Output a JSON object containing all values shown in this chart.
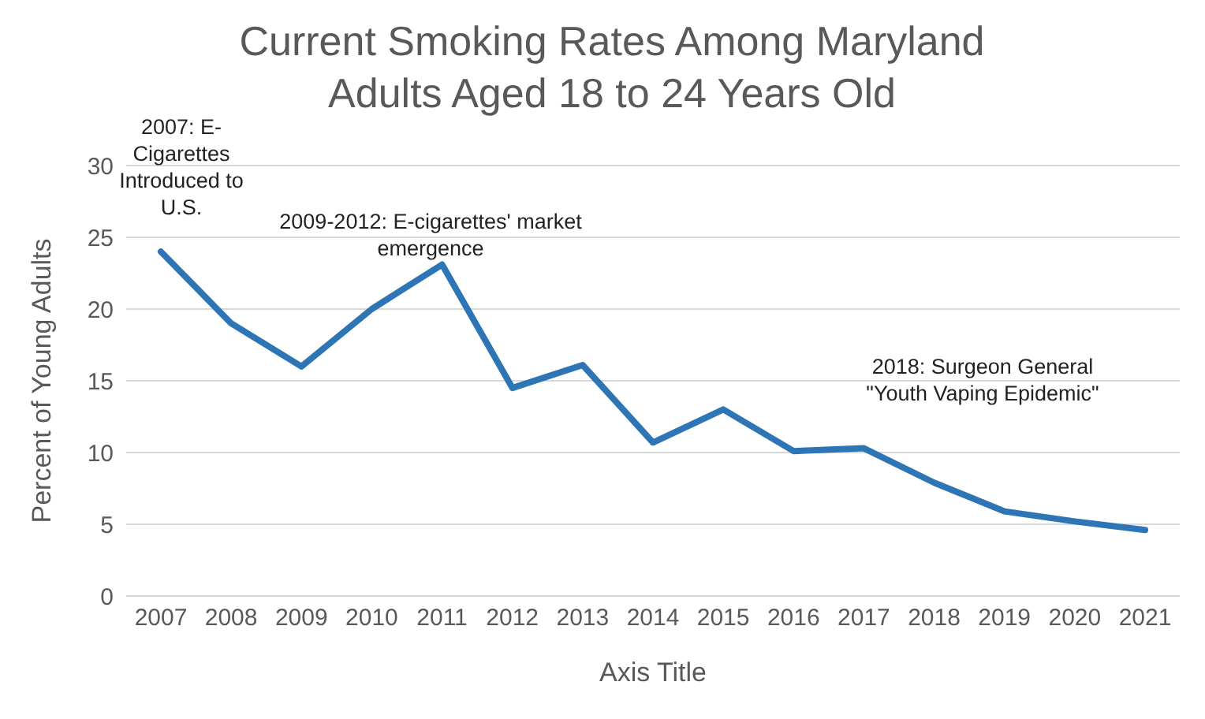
{
  "chart_data": {
    "type": "line",
    "title": "Current Smoking Rates Among Maryland Adults Aged 18 to 24 Years Old",
    "xlabel": "Axis Title",
    "ylabel": "Percent of Young Adults",
    "categories": [
      "2007",
      "2008",
      "2009",
      "2010",
      "2011",
      "2012",
      "2013",
      "2014",
      "2015",
      "2016",
      "2017",
      "2018",
      "2019",
      "2020",
      "2021"
    ],
    "series": [
      {
        "color": "#2e75b6",
        "values": [
          24.0,
          19.0,
          16.0,
          20.0,
          23.1,
          14.5,
          16.1,
          10.7,
          13.0,
          10.1,
          10.3,
          7.9,
          5.9,
          5.2,
          4.6
        ]
      }
    ],
    "ylim": [
      0,
      30
    ],
    "yticks": [
      0,
      5,
      10,
      15,
      20,
      25,
      30
    ],
    "grid": "y",
    "marker": "none",
    "line_style": "solid",
    "annotations": [
      "2007: E-Cigarettes Introduced to U.S.",
      "2009-2012: E-cigarettes' market emergence",
      "2018: Surgeon General \"Youth Vaping Epidemic\""
    ]
  }
}
